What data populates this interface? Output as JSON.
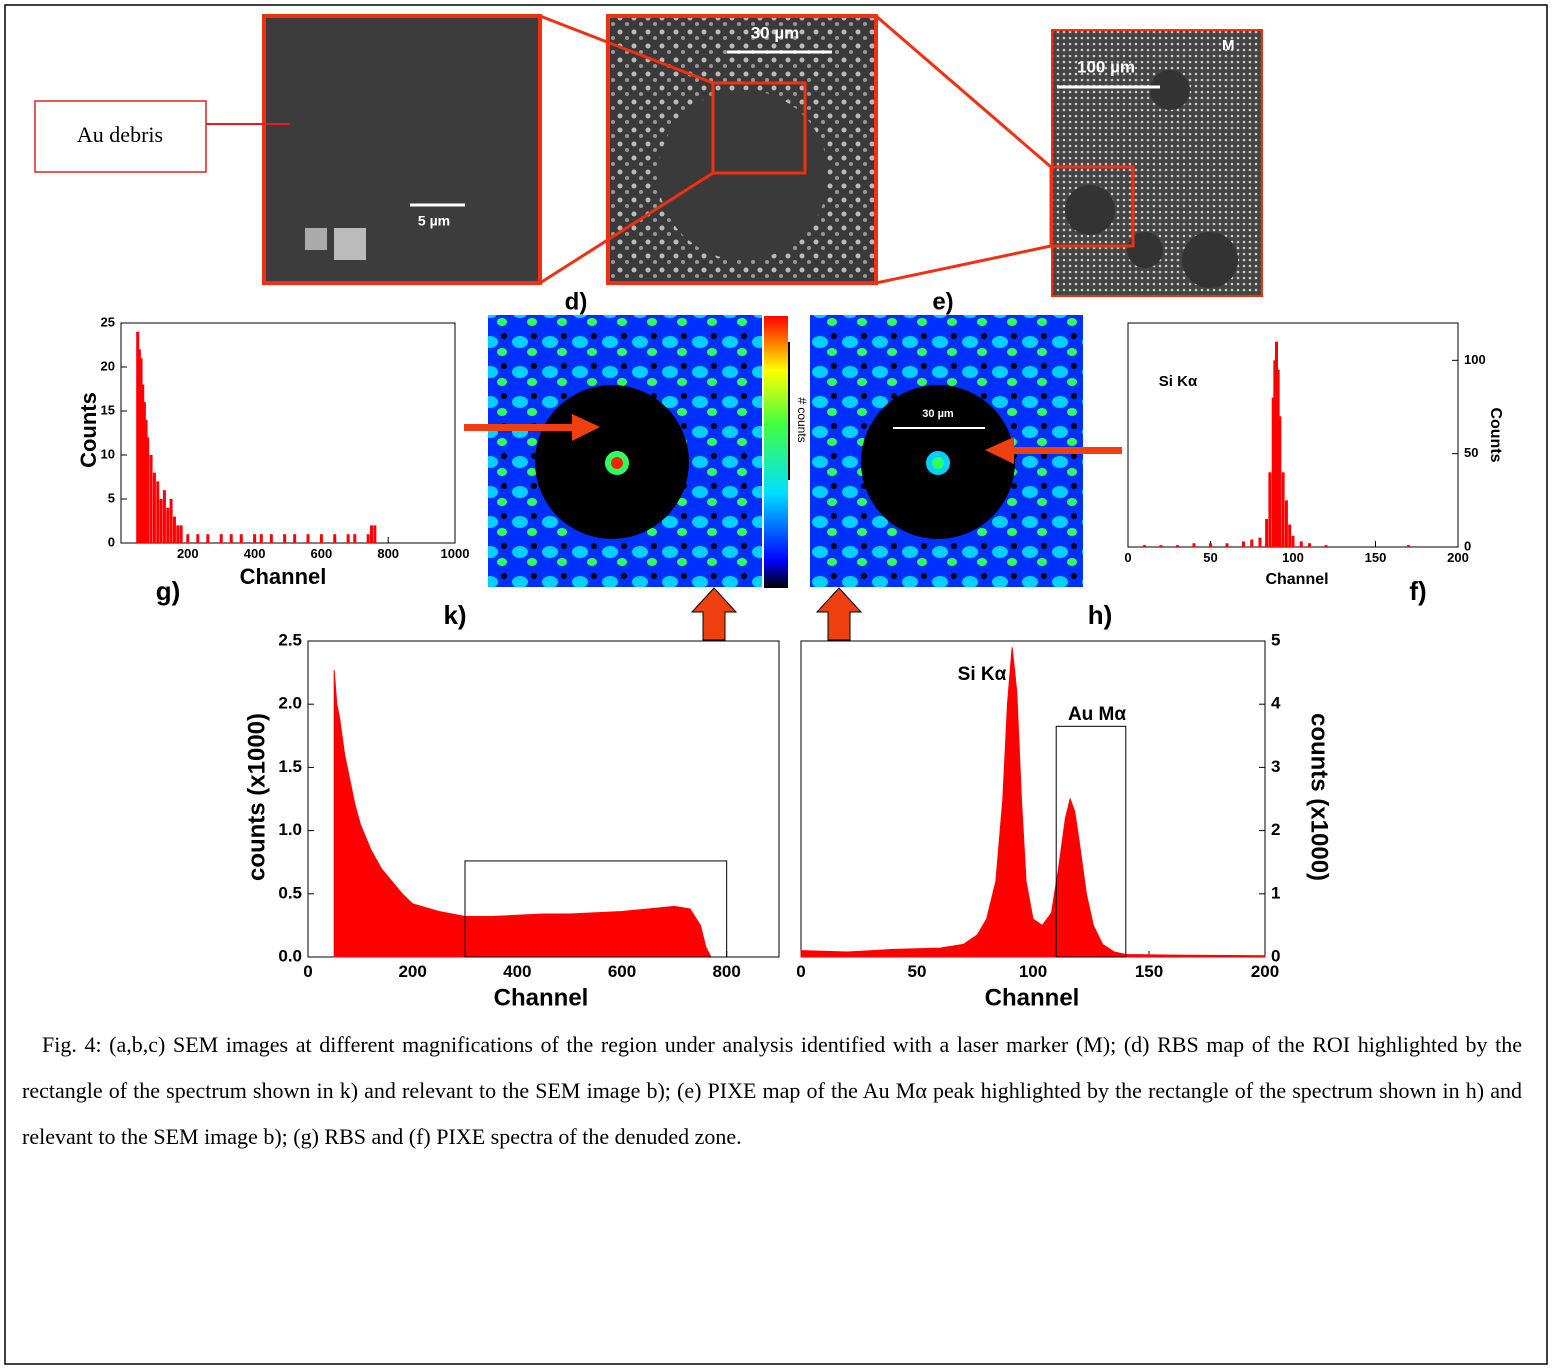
{
  "figure": {
    "labels": {
      "au_debris": "Au debris",
      "scale_a": "5 µm",
      "scale_b": "30 µm",
      "scale_c": "100 µm",
      "marker": "M",
      "map_d": "d)",
      "map_e": "e)",
      "colorbar": "# counts",
      "scale_map": "30 µm"
    },
    "caption": "Fig. 4: (a,b,c) SEM images at different magnifications of the region under analysis identified with a laser marker (M);   (d) RBS map of the ROI highlighted by the rectangle of the spectrum shown in k) and relevant to the SEM image b); (e) PIXE map of the Au Mα peak highlighted by the rectangle of the spectrum shown in h) and relevant to the SEM image b); (g) RBS and (f) PIXE spectra of the denuded zone."
  },
  "chart_data": [
    {
      "type": "bar",
      "title": "g)",
      "xlabel": "Channel",
      "ylabel": "Counts",
      "color": "#ff0000",
      "x": [
        50,
        55,
        60,
        65,
        70,
        75,
        80,
        90,
        100,
        110,
        120,
        130,
        140,
        150,
        160,
        170,
        180,
        200,
        230,
        260,
        300,
        330,
        360,
        400,
        420,
        450,
        490,
        520,
        560,
        600,
        640,
        680,
        700,
        740,
        750,
        760
      ],
      "values": [
        24,
        22,
        21,
        18,
        16,
        14,
        12,
        10,
        8,
        7,
        5,
        6,
        4,
        5,
        3,
        2,
        2,
        1,
        1,
        1,
        1,
        1,
        1,
        1,
        1,
        1,
        1,
        1,
        1,
        1,
        1,
        1,
        1,
        1,
        2,
        2
      ],
      "xlim": [
        0,
        1000
      ],
      "xticks": [
        200,
        400,
        600,
        800,
        1000
      ],
      "ylim": [
        0,
        25
      ],
      "yticks": [
        0,
        5,
        10,
        15,
        20,
        25
      ]
    },
    {
      "type": "bar",
      "title": "f)",
      "xlabel": "Channel",
      "ylabel": "Counts",
      "color": "#ff0000",
      "axis": "y2",
      "annotations": [
        "Si Kα"
      ],
      "x": [
        10,
        20,
        30,
        40,
        50,
        60,
        70,
        75,
        80,
        84,
        86,
        88,
        89,
        90,
        91,
        92,
        94,
        96,
        98,
        100,
        105,
        110,
        120,
        170
      ],
      "values": [
        1,
        1,
        1,
        2,
        2,
        2,
        3,
        4,
        5,
        15,
        40,
        80,
        100,
        110,
        95,
        70,
        40,
        25,
        12,
        6,
        3,
        2,
        1,
        1
      ],
      "xlim": [
        0,
        200
      ],
      "xticks": [
        0,
        50,
        100,
        150,
        200
      ],
      "y2lim": [
        0,
        120
      ],
      "y2ticks": [
        0,
        50,
        100
      ]
    },
    {
      "type": "area",
      "title": "k)",
      "xlabel": "Channel",
      "ylabel": "counts (x1000)",
      "color": "#ff0000",
      "roi_x": [
        300,
        800
      ],
      "roi_top": 0.76,
      "x": [
        50,
        55,
        60,
        70,
        80,
        90,
        100,
        120,
        140,
        160,
        180,
        200,
        250,
        300,
        350,
        400,
        450,
        500,
        550,
        600,
        650,
        700,
        730,
        750,
        760,
        770
      ],
      "values": [
        2.27,
        2.0,
        1.9,
        1.6,
        1.4,
        1.2,
        1.05,
        0.85,
        0.7,
        0.6,
        0.5,
        0.42,
        0.36,
        0.32,
        0.32,
        0.33,
        0.34,
        0.34,
        0.35,
        0.36,
        0.38,
        0.4,
        0.38,
        0.25,
        0.08,
        0
      ],
      "xlim": [
        0,
        900
      ],
      "xticks": [
        0,
        200,
        400,
        600,
        800
      ],
      "ylim": [
        0,
        2.5
      ],
      "yticks": [
        {
          "value": 0,
          "label": "0.0"
        },
        0.5,
        {
          "value": 1,
          "label": "1.0"
        },
        1.5,
        {
          "value": 2,
          "label": "2.0"
        },
        2.5
      ]
    },
    {
      "type": "area",
      "title": "h)",
      "xlabel": "Channel",
      "ylabel": "counts (x1000)",
      "color": "#ff0000",
      "axis": "y2",
      "annotations": [
        "Si Kα",
        "Au Mα"
      ],
      "roi_x": [
        110,
        140
      ],
      "roi_top": 3.65,
      "x": [
        0,
        20,
        40,
        60,
        70,
        76,
        80,
        84,
        87,
        89,
        91,
        93,
        95,
        97,
        100,
        104,
        108,
        111,
        114,
        116,
        118,
        120,
        123,
        126,
        130,
        135,
        140,
        160,
        200
      ],
      "values": [
        0.1,
        0.08,
        0.12,
        0.14,
        0.2,
        0.35,
        0.6,
        1.2,
        2.5,
        4.0,
        4.9,
        4.2,
        2.5,
        1.2,
        0.6,
        0.5,
        0.7,
        1.4,
        2.2,
        2.5,
        2.3,
        1.8,
        1.0,
        0.5,
        0.2,
        0.08,
        0.04,
        0.03,
        0.02
      ],
      "xlim": [
        0,
        200
      ],
      "xticks": [
        0,
        50,
        100,
        150,
        200
      ],
      "y2lim": [
        0,
        5
      ],
      "y2ticks": [
        0,
        1,
        2,
        3,
        4,
        5
      ]
    }
  ]
}
